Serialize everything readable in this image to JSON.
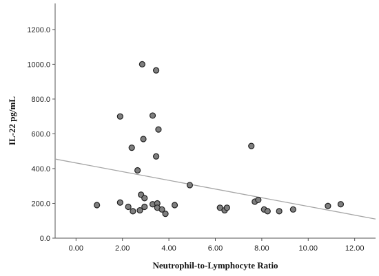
{
  "chart_data": {
    "type": "scatter",
    "title": "",
    "xlabel": "Neutrophil-to-Lymphocyte Ratio",
    "ylabel": "IL-22 pg/mL",
    "xlim": [
      -0.9,
      12.9
    ],
    "ylim": [
      0,
      1350
    ],
    "x_ticks": [
      "0.00",
      "2.00",
      "4.00",
      "6.00",
      "8.00",
      "10.00",
      "12.00"
    ],
    "y_ticks": [
      "0.0",
      "200.0",
      "400.0",
      "600.0",
      "800.0",
      "1000.0",
      "1200.0"
    ],
    "grid": false,
    "point_color": "#7f7f7f",
    "trend_color": "#a6a6a6",
    "points": [
      {
        "x": 0.9,
        "y": 190
      },
      {
        "x": 1.9,
        "y": 700
      },
      {
        "x": 1.9,
        "y": 205
      },
      {
        "x": 2.25,
        "y": 180
      },
      {
        "x": 2.4,
        "y": 520
      },
      {
        "x": 2.45,
        "y": 155
      },
      {
        "x": 2.65,
        "y": 390
      },
      {
        "x": 2.75,
        "y": 160
      },
      {
        "x": 2.8,
        "y": 250
      },
      {
        "x": 2.85,
        "y": 1000
      },
      {
        "x": 2.9,
        "y": 570
      },
      {
        "x": 2.95,
        "y": 230
      },
      {
        "x": 2.95,
        "y": 180
      },
      {
        "x": 3.3,
        "y": 705
      },
      {
        "x": 3.3,
        "y": 195
      },
      {
        "x": 3.45,
        "y": 965
      },
      {
        "x": 3.45,
        "y": 470
      },
      {
        "x": 3.5,
        "y": 200
      },
      {
        "x": 3.5,
        "y": 175
      },
      {
        "x": 3.55,
        "y": 625
      },
      {
        "x": 3.7,
        "y": 165
      },
      {
        "x": 3.85,
        "y": 140
      },
      {
        "x": 4.25,
        "y": 190
      },
      {
        "x": 4.9,
        "y": 305
      },
      {
        "x": 6.2,
        "y": 175
      },
      {
        "x": 6.4,
        "y": 160
      },
      {
        "x": 6.5,
        "y": 175
      },
      {
        "x": 7.55,
        "y": 530
      },
      {
        "x": 7.7,
        "y": 210
      },
      {
        "x": 7.85,
        "y": 220
      },
      {
        "x": 8.1,
        "y": 165
      },
      {
        "x": 8.25,
        "y": 155
      },
      {
        "x": 8.75,
        "y": 155
      },
      {
        "x": 9.35,
        "y": 165
      },
      {
        "x": 10.85,
        "y": 185
      },
      {
        "x": 11.4,
        "y": 195
      }
    ],
    "trend_line": {
      "x": [
        -0.9,
        12.9
      ],
      "y": [
        455,
        110
      ]
    }
  }
}
